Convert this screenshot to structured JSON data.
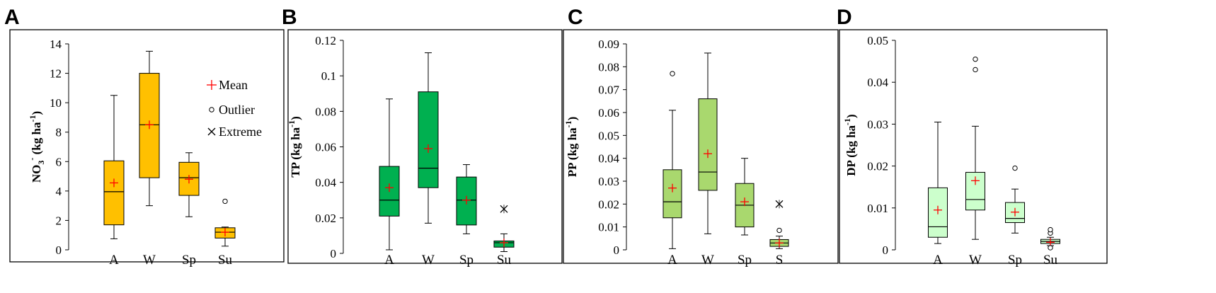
{
  "panels": [
    {
      "letter": "A",
      "chart_data": {
        "type": "box",
        "ylabel_parts": [
          "NO",
          "3",
          "-",
          " (kg ha",
          "-1",
          ")"
        ],
        "ylim": [
          0,
          14
        ],
        "yticks": [
          0,
          2,
          4,
          6,
          8,
          10,
          12,
          14
        ],
        "ytick_labels": [
          "0",
          "2",
          "4",
          "6",
          "8",
          "10",
          "12",
          "14"
        ],
        "categories": [
          "A",
          "W",
          "Sp",
          "Su"
        ],
        "box_color": "#FFC000",
        "boxes": [
          {
            "category": "A",
            "min": 0.75,
            "q1": 1.7,
            "median": 3.95,
            "q3": 6.05,
            "max": 10.5,
            "mean": 4.55,
            "outliers": [],
            "extremes": []
          },
          {
            "category": "W",
            "min": 3.0,
            "q1": 4.9,
            "median": 8.5,
            "q3": 12.0,
            "max": 13.5,
            "mean": 8.5,
            "outliers": [],
            "extremes": []
          },
          {
            "category": "Sp",
            "min": 2.25,
            "q1": 3.7,
            "median": 4.9,
            "q3": 5.95,
            "max": 6.6,
            "mean": 4.8,
            "outliers": [],
            "extremes": []
          },
          {
            "category": "Su",
            "min": 0.25,
            "q1": 0.8,
            "median": 1.2,
            "q3": 1.5,
            "max": 1.55,
            "mean": 1.2,
            "outliers": [
              3.3
            ],
            "extremes": []
          }
        ],
        "legend": {
          "mean": "Mean",
          "outlier": "Outlier",
          "extreme": "Extreme"
        }
      }
    },
    {
      "letter": "B",
      "chart_data": {
        "type": "box",
        "ylabel_parts": [
          "TP (kg ha",
          "-1",
          ")"
        ],
        "ylim": [
          0,
          0.12
        ],
        "yticks": [
          0,
          0.02,
          0.04,
          0.06,
          0.08,
          0.1,
          0.12
        ],
        "ytick_labels": [
          "0",
          "0.02",
          "0.04",
          "0.06",
          "0.08",
          "0.1",
          "0.12"
        ],
        "categories": [
          "A",
          "W",
          "Sp",
          "Su"
        ],
        "box_color": "#00B050",
        "boxes": [
          {
            "category": "A",
            "min": 0.002,
            "q1": 0.021,
            "median": 0.03,
            "q3": 0.049,
            "max": 0.087,
            "mean": 0.037,
            "outliers": [],
            "extremes": []
          },
          {
            "category": "W",
            "min": 0.017,
            "q1": 0.037,
            "median": 0.048,
            "q3": 0.091,
            "max": 0.113,
            "mean": 0.059,
            "outliers": [],
            "extremes": []
          },
          {
            "category": "Sp",
            "min": 0.011,
            "q1": 0.016,
            "median": 0.03,
            "q3": 0.043,
            "max": 0.05,
            "mean": 0.03,
            "outliers": [],
            "extremes": []
          },
          {
            "category": "Su",
            "min": 0.001,
            "q1": 0.0035,
            "median": 0.006,
            "q3": 0.007,
            "max": 0.011,
            "mean": 0.006,
            "outliers": [],
            "extremes": [
              0.025
            ]
          }
        ]
      }
    },
    {
      "letter": "C",
      "chart_data": {
        "type": "box",
        "ylabel_parts": [
          "PP (kg ha",
          "-1",
          ")"
        ],
        "ylim": [
          0,
          0.09
        ],
        "yticks": [
          0,
          0.01,
          0.02,
          0.03,
          0.04,
          0.05,
          0.06,
          0.07,
          0.08,
          0.09
        ],
        "ytick_labels": [
          "0",
          "0.01",
          "0.02",
          "0.03",
          "0.04",
          "0.05",
          "0.06",
          "0.07",
          "0.08",
          "0.09"
        ],
        "categories": [
          "A",
          "W",
          "Sp",
          "S"
        ],
        "box_color": "#A9D86E",
        "boxes": [
          {
            "category": "A",
            "min": 0.0005,
            "q1": 0.014,
            "median": 0.021,
            "q3": 0.035,
            "max": 0.061,
            "mean": 0.027,
            "outliers": [
              0.077
            ],
            "extremes": []
          },
          {
            "category": "W",
            "min": 0.007,
            "q1": 0.026,
            "median": 0.034,
            "q3": 0.066,
            "max": 0.086,
            "mean": 0.042,
            "outliers": [],
            "extremes": []
          },
          {
            "category": "Sp",
            "min": 0.0065,
            "q1": 0.01,
            "median": 0.0195,
            "q3": 0.029,
            "max": 0.04,
            "mean": 0.021,
            "outliers": [],
            "extremes": []
          },
          {
            "category": "S",
            "min": 0.0005,
            "q1": 0.0015,
            "median": 0.003,
            "q3": 0.0045,
            "max": 0.006,
            "mean": 0.003,
            "outliers": [
              0.0085
            ],
            "extremes": [
              0.02
            ]
          }
        ]
      }
    },
    {
      "letter": "D",
      "chart_data": {
        "type": "box",
        "ylabel_parts": [
          "DP (kg ha",
          "-1",
          ")"
        ],
        "ylim": [
          0,
          0.05
        ],
        "yticks": [
          0,
          0.01,
          0.02,
          0.03,
          0.04,
          0.05
        ],
        "ytick_labels": [
          "0",
          "0.01",
          "0.02",
          "0.03",
          "0.04",
          "0.05"
        ],
        "categories": [
          "A",
          "W",
          "Sp",
          "Su"
        ],
        "box_color": "#CCFFCC",
        "boxes": [
          {
            "category": "A",
            "min": 0.0015,
            "q1": 0.003,
            "median": 0.0055,
            "q3": 0.0148,
            "max": 0.0305,
            "mean": 0.0095,
            "outliers": [],
            "extremes": []
          },
          {
            "category": "W",
            "min": 0.0025,
            "q1": 0.0095,
            "median": 0.012,
            "q3": 0.0185,
            "max": 0.0295,
            "mean": 0.0165,
            "outliers": [
              0.043,
              0.0455
            ],
            "extremes": []
          },
          {
            "category": "Sp",
            "min": 0.004,
            "q1": 0.0065,
            "median": 0.0075,
            "q3": 0.0113,
            "max": 0.0145,
            "mean": 0.009,
            "outliers": [
              0.0195
            ],
            "extremes": []
          },
          {
            "category": "Su",
            "min": 0.001,
            "q1": 0.0015,
            "median": 0.002,
            "q3": 0.0025,
            "max": 0.003,
            "mean": 0.0018,
            "outliers": [
              0.0005,
              0.004,
              0.0048
            ],
            "extremes": []
          }
        ]
      }
    }
  ],
  "colors": {
    "mean": "#FF0000",
    "stroke": "#000000"
  }
}
